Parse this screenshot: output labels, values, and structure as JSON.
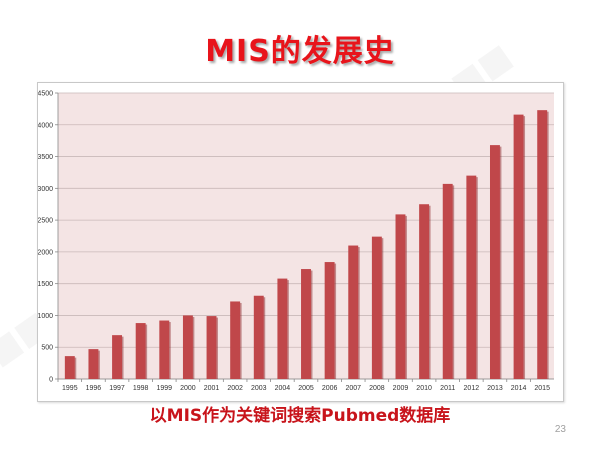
{
  "slide": {
    "title": "MIS的发展史",
    "caption": "以MIS作为关键词搜索Pubmed数据库",
    "page_number": "23"
  },
  "colors": {
    "title": "#e8141b",
    "bar": "#c0474a",
    "bar_shadow": "#8e2a2d",
    "plot_bg": "#f4e4e4",
    "grid": "#c9b8b8"
  },
  "chart_data": {
    "type": "bar",
    "title": "",
    "xlabel": "",
    "ylabel": "",
    "categories": [
      "1995",
      "1996",
      "1997",
      "1998",
      "1999",
      "2000",
      "2001",
      "2002",
      "2003",
      "2004",
      "2005",
      "2006",
      "2007",
      "2008",
      "2009",
      "2010",
      "2011",
      "2012",
      "2013",
      "2014",
      "2015"
    ],
    "values": [
      360,
      470,
      690,
      880,
      920,
      1000,
      990,
      1220,
      1310,
      1580,
      1730,
      1840,
      2100,
      2240,
      2590,
      2750,
      3070,
      3200,
      3680,
      4160,
      4230
    ],
    "ylim": [
      0,
      4500
    ],
    "yticks": [
      0,
      500,
      1000,
      1500,
      2000,
      2500,
      3000,
      3500,
      4000,
      4500
    ],
    "grid": true,
    "legend": "none"
  }
}
